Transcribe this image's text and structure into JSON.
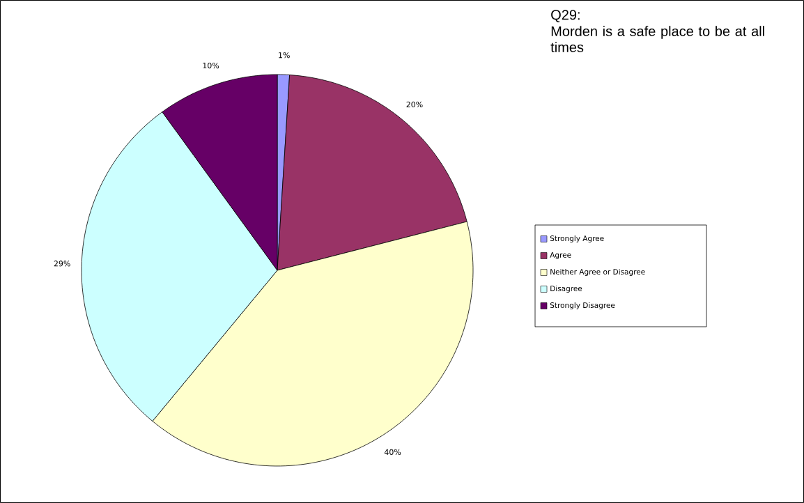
{
  "chart_data": {
    "type": "pie",
    "title": "Q29:",
    "subtitle": "Morden is a safe place to be at all times",
    "categories": [
      "Strongly Agree",
      "Agree",
      "Neither Agree or Disagree",
      "Disagree",
      "Strongly Disagree"
    ],
    "values": [
      1,
      20,
      40,
      29,
      10
    ],
    "colors": [
      "#9999ff",
      "#993366",
      "#ffffcc",
      "#ccffff",
      "#660066"
    ],
    "value_labels": [
      "1%",
      "20%",
      "40%",
      "29%",
      "10%"
    ],
    "legend": "right"
  }
}
